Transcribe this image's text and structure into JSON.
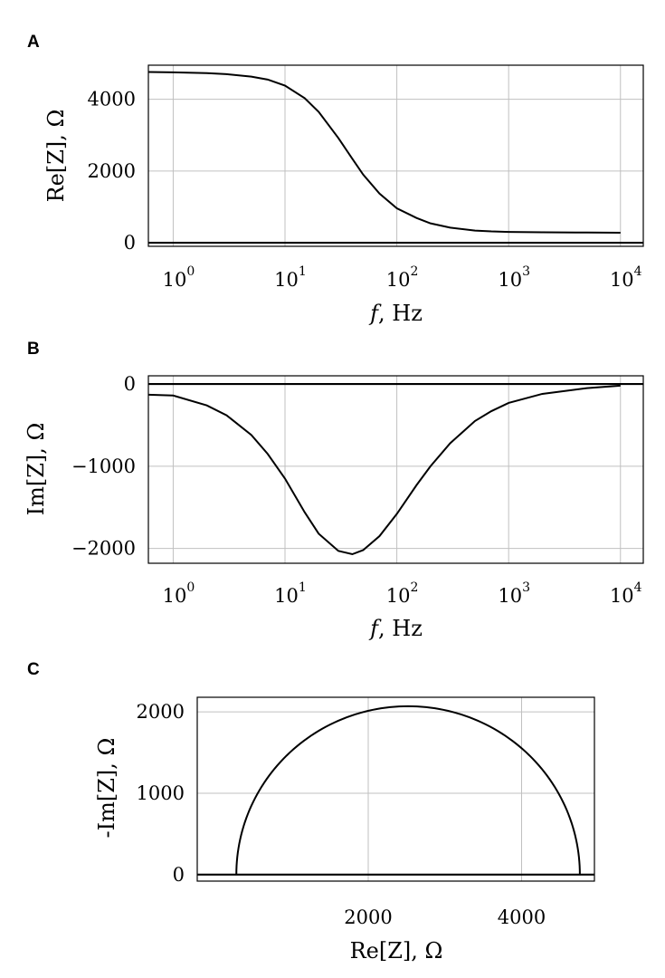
{
  "chart_data": [
    {
      "panel": "A",
      "type": "line",
      "xscale": "log",
      "xlim": [
        0.6,
        16000
      ],
      "ylim": [
        -100,
        4950
      ],
      "xticks": [
        {
          "base": "10",
          "exp": "0"
        },
        {
          "base": "10",
          "exp": "1"
        },
        {
          "base": "10",
          "exp": "2"
        },
        {
          "base": "10",
          "exp": "3"
        },
        {
          "base": "10",
          "exp": "4"
        }
      ],
      "yticks": [
        "0",
        "2000",
        "4000"
      ],
      "xlabel_var": "f",
      "xlabel_rest": ", Hz",
      "ylabel": "Re[Z], Ω",
      "grid": true,
      "x": [
        0.6,
        1,
        2,
        3,
        5,
        7,
        10,
        15,
        20,
        30,
        40,
        50,
        70,
        100,
        150,
        200,
        300,
        500,
        700,
        1000,
        2000,
        5000,
        10000
      ],
      "y": [
        4760,
        4750,
        4730,
        4700,
        4630,
        4550,
        4380,
        4030,
        3650,
        2920,
        2340,
        1900,
        1370,
        960,
        690,
        540,
        420,
        340,
        315,
        300,
        290,
        285,
        280
      ],
      "zero_line": true
    },
    {
      "panel": "B",
      "type": "line",
      "xscale": "log",
      "xlim": [
        0.6,
        16000
      ],
      "ylim": [
        -2180,
        100
      ],
      "xticks": [
        {
          "base": "10",
          "exp": "0"
        },
        {
          "base": "10",
          "exp": "1"
        },
        {
          "base": "10",
          "exp": "2"
        },
        {
          "base": "10",
          "exp": "3"
        },
        {
          "base": "10",
          "exp": "4"
        }
      ],
      "yticks": [
        "0",
        "−1000",
        "−2000"
      ],
      "xlabel_var": "f",
      "xlabel_rest": ", Hz",
      "ylabel": "Im[Z], Ω",
      "grid": true,
      "x": [
        0.6,
        1,
        2,
        3,
        5,
        7,
        10,
        15,
        20,
        30,
        40,
        50,
        70,
        100,
        150,
        200,
        300,
        500,
        700,
        1000,
        2000,
        5000,
        10000
      ],
      "y": [
        -130,
        -140,
        -260,
        -380,
        -620,
        -850,
        -1150,
        -1560,
        -1820,
        -2030,
        -2070,
        -2020,
        -1850,
        -1580,
        -1230,
        -1000,
        -720,
        -450,
        -330,
        -230,
        -120,
        -50,
        -20
      ],
      "zero_line": true
    },
    {
      "panel": "C",
      "type": "line",
      "xlim": [
        -230,
        4950
      ],
      "ylim": [
        -80,
        2180
      ],
      "xticks": [
        "2000",
        "4000"
      ],
      "yticks": [
        "0",
        "1000",
        "2000"
      ],
      "xlabel": "Re[Z], Ω",
      "ylabel": "-Im[Z], Ω",
      "grid": true,
      "arc": {
        "re_min": 280,
        "re_max": 4760,
        "im_peak": 2070
      },
      "zero_line": true
    }
  ]
}
